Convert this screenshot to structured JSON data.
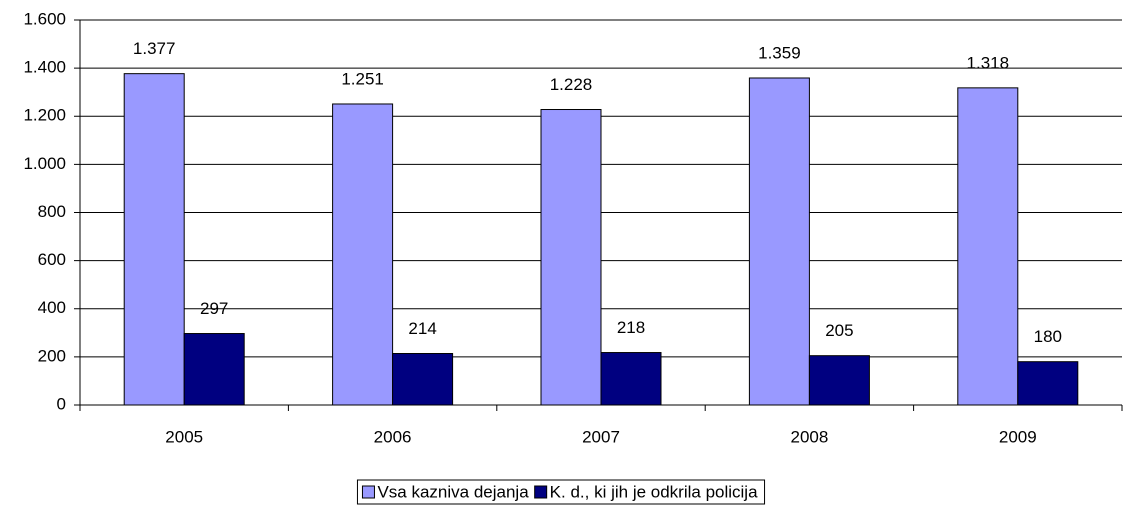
{
  "chart_data": {
    "type": "bar",
    "categories": [
      "2005",
      "2006",
      "2007",
      "2008",
      "2009"
    ],
    "series": [
      {
        "name": "Vsa kazniva dejanja",
        "color": "#9999ff",
        "values": [
          1377,
          1251,
          1228,
          1359,
          1318
        ],
        "value_labels": [
          "1.377",
          "1.251",
          "1.228",
          "1.359",
          "1.318"
        ]
      },
      {
        "name": "K. d., ki jih je odkrila policija",
        "color": "#000080",
        "values": [
          297,
          214,
          218,
          205,
          180
        ]
      }
    ],
    "ylim": [
      0,
      1600
    ],
    "yticks": [
      0,
      200,
      400,
      600,
      800,
      {
        "value": 1000,
        "label": "1.000"
      },
      {
        "value": 1200,
        "label": "1.200"
      },
      {
        "value": 1400,
        "label": "1.400"
      },
      {
        "value": 1600,
        "label": "1.600"
      }
    ],
    "grid": true,
    "legend": "bottom"
  }
}
